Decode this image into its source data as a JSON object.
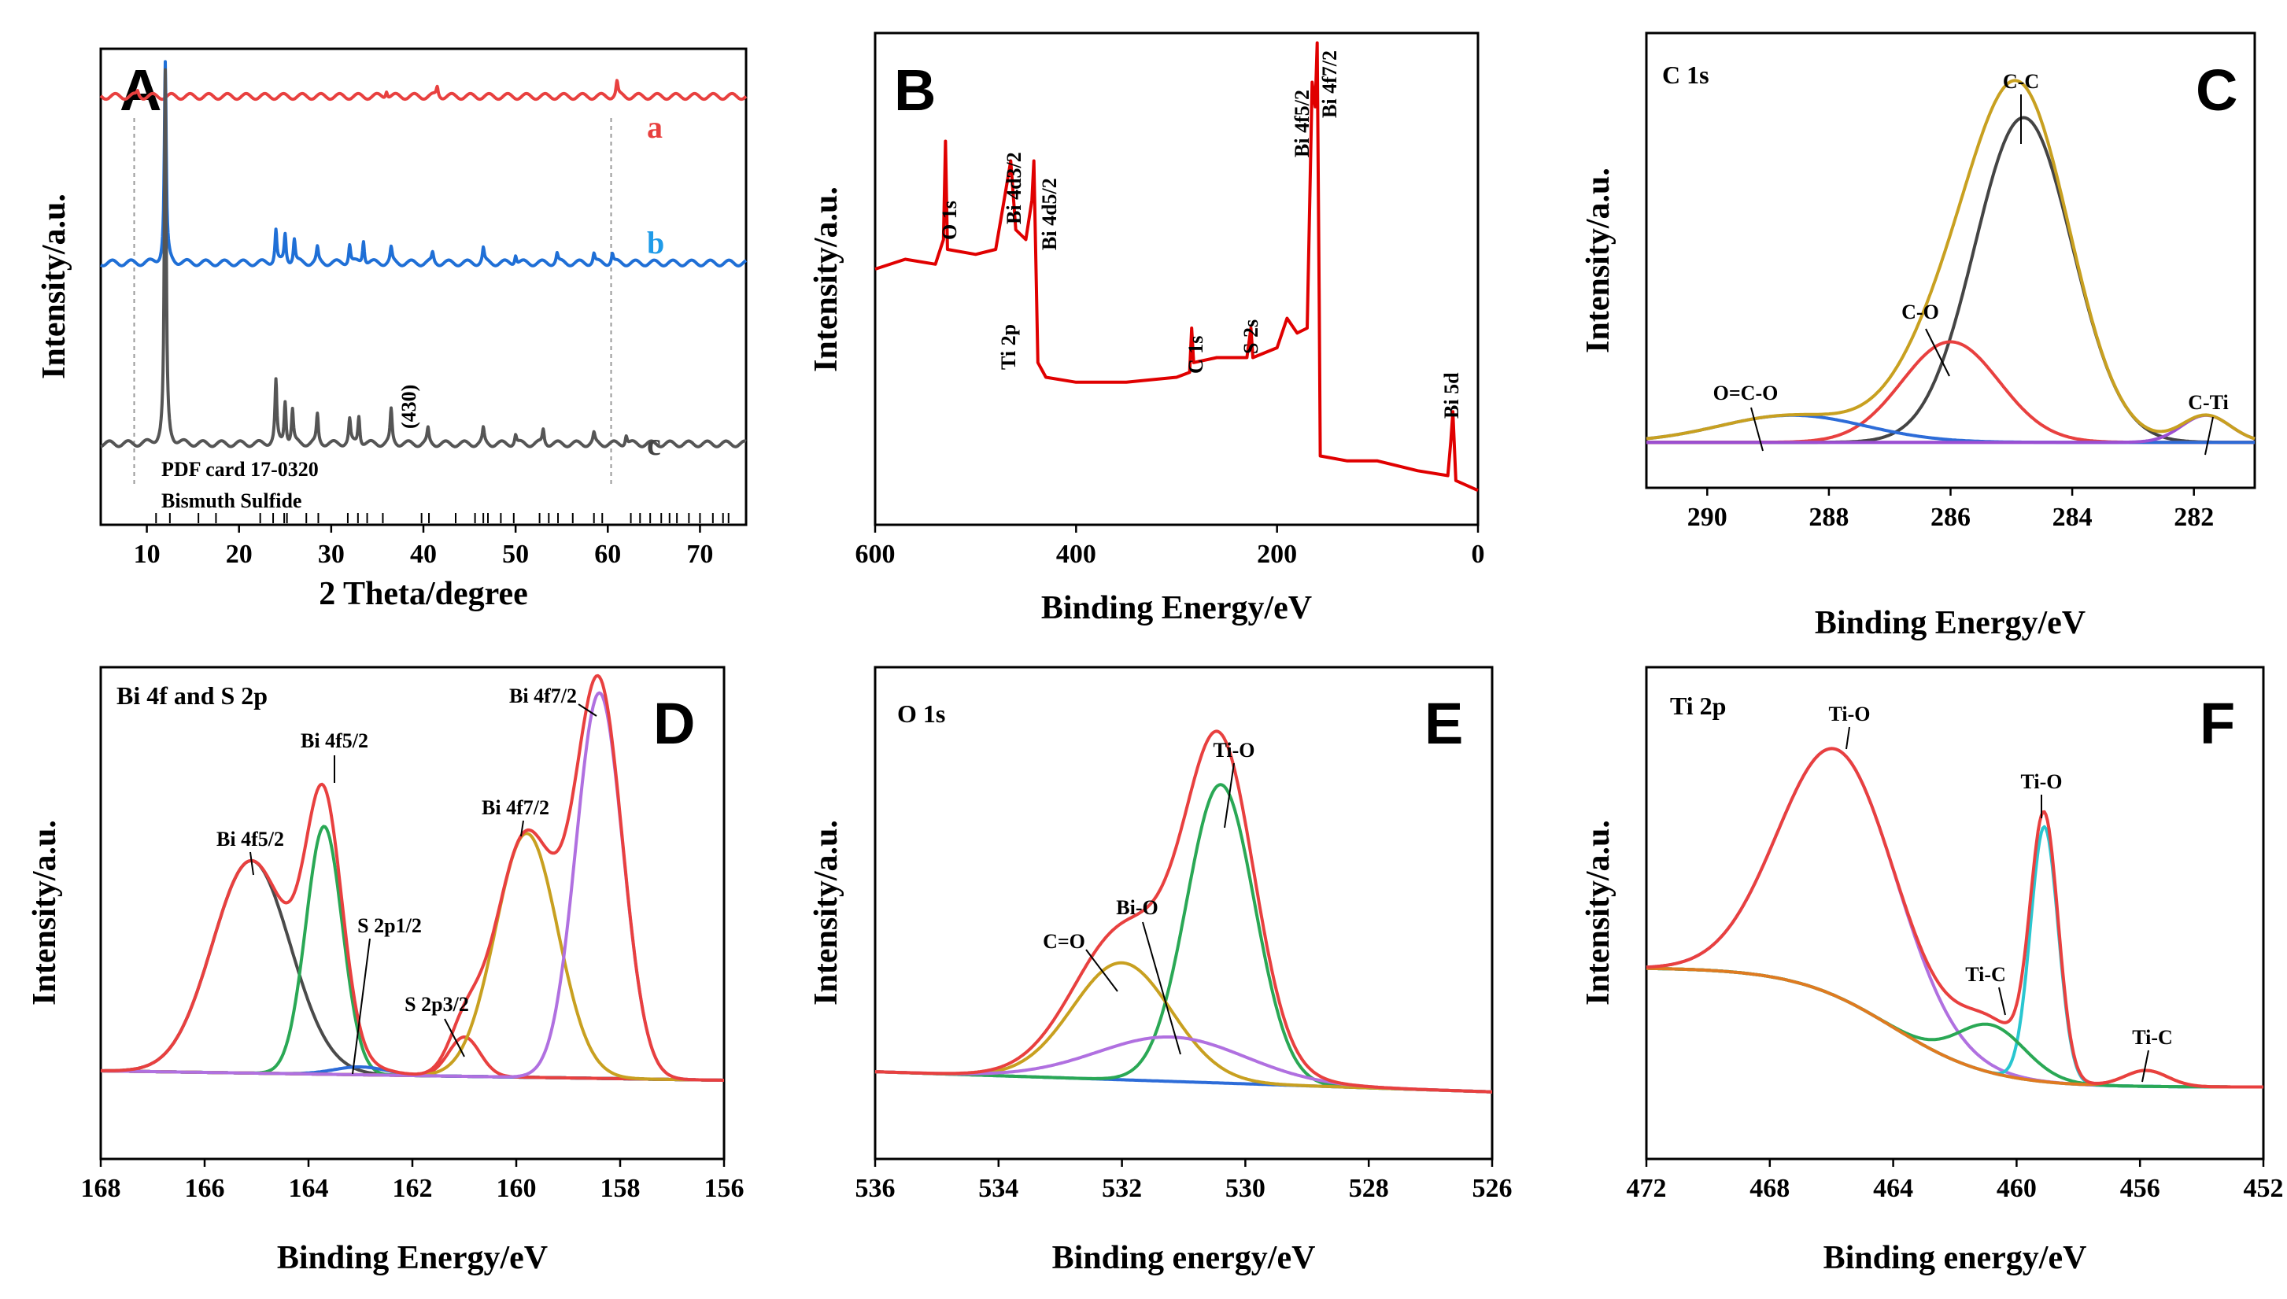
{
  "chart_data": [
    {
      "panel": "A",
      "type": "line",
      "xlabel": "2 Theta/degree",
      "ylabel": "Intensity/a.u.",
      "xlim": [
        5,
        75
      ],
      "xticks": [
        10,
        20,
        30,
        40,
        50,
        60,
        70
      ],
      "series": [
        {
          "name": "a",
          "color": "#e8403f",
          "offset": 0.9,
          "peaks": [
            [
              9,
              0.01
            ],
            [
              36,
              0.015
            ],
            [
              41.5,
              0.02
            ],
            [
              61,
              0.03
            ]
          ]
        },
        {
          "name": "b",
          "color": "#1f6fd6",
          "offset": 0.55,
          "peaks": [
            [
              12,
              0.42
            ],
            [
              24,
              0.07
            ],
            [
              25,
              0.06
            ],
            [
              26,
              0.05
            ],
            [
              28.5,
              0.03
            ],
            [
              32,
              0.04
            ],
            [
              33.5,
              0.05
            ],
            [
              36.5,
              0.03
            ],
            [
              41,
              0.02
            ],
            [
              46.5,
              0.03
            ],
            [
              50,
              0.02
            ],
            [
              54.5,
              0.02
            ],
            [
              58.5,
              0.02
            ],
            [
              60.5,
              0.02
            ]
          ]
        },
        {
          "name": "c",
          "color": "#555555",
          "offset": 0.17,
          "peaks": [
            [
              12,
              0.78
            ],
            [
              24,
              0.13
            ],
            [
              25,
              0.09
            ],
            [
              25.8,
              0.07
            ],
            [
              28.5,
              0.06
            ],
            [
              32,
              0.05
            ],
            [
              33,
              0.06
            ],
            [
              36.5,
              0.07
            ],
            [
              40.5,
              0.03
            ],
            [
              46.5,
              0.03
            ],
            [
              50,
              0.02
            ],
            [
              53,
              0.03
            ],
            [
              58.5,
              0.02
            ],
            [
              62,
              0.02
            ]
          ]
        }
      ],
      "reference_lines": [
        9,
        61
      ],
      "annotations": [
        "(430)",
        "PDF card 17-0320",
        "Bismuth Sulfide"
      ]
    },
    {
      "panel": "B",
      "type": "line",
      "xlabel": "Binding Energy/eV",
      "ylabel": "Intensity/a.u.",
      "xlim": [
        600,
        0
      ],
      "xticks": [
        600,
        400,
        200,
        0
      ],
      "series": [
        {
          "name": "survey",
          "color": "#e00000",
          "points": [
            [
              600,
              0.52
            ],
            [
              570,
              0.54
            ],
            [
              540,
              0.53
            ],
            [
              532,
              0.58
            ],
            [
              530,
              0.78
            ],
            [
              528,
              0.56
            ],
            [
              500,
              0.55
            ],
            [
              480,
              0.56
            ],
            [
              470,
              0.68
            ],
            [
              465,
              0.74
            ],
            [
              460,
              0.6
            ],
            [
              450,
              0.58
            ],
            [
              444,
              0.66
            ],
            [
              442,
              0.74
            ],
            [
              438,
              0.33
            ],
            [
              430,
              0.3
            ],
            [
              400,
              0.29
            ],
            [
              350,
              0.29
            ],
            [
              300,
              0.3
            ],
            [
              287,
              0.31
            ],
            [
              285,
              0.4
            ],
            [
              283,
              0.33
            ],
            [
              260,
              0.34
            ],
            [
              230,
              0.34
            ],
            [
              226,
              0.4
            ],
            [
              224,
              0.34
            ],
            [
              200,
              0.36
            ],
            [
              190,
              0.42
            ],
            [
              180,
              0.39
            ],
            [
              170,
              0.4
            ],
            [
              165,
              0.9
            ],
            [
              162,
              0.85
            ],
            [
              160,
              0.98
            ],
            [
              158,
              0.45
            ],
            [
              157,
              0.14
            ],
            [
              130,
              0.13
            ],
            [
              100,
              0.13
            ],
            [
              60,
              0.11
            ],
            [
              30,
              0.1
            ],
            [
              27,
              0.17
            ],
            [
              25,
              0.23
            ],
            [
              22,
              0.09
            ],
            [
              0,
              0.07
            ]
          ]
        }
      ],
      "peak_labels": [
        "O 1s",
        "Ti 2p",
        "Bi 4d3/2",
        "Bi 4d5/2",
        "C 1s",
        "S 2s",
        "Bi 4f5/2",
        "Bi 4f7/2",
        "Bi 5d"
      ]
    },
    {
      "panel": "C",
      "type": "line",
      "title": "C 1s",
      "xlabel": "Binding Energy/eV",
      "ylabel": "Intensity/a.u.",
      "xlim": [
        291,
        281
      ],
      "xticks": [
        290,
        288,
        286,
        284,
        282
      ],
      "components": [
        {
          "name": "C-C",
          "color": "#444444",
          "center": 284.8,
          "amp": 0.84,
          "width": 0.8
        },
        {
          "name": "C-O",
          "color": "#e8403f",
          "center": 286.0,
          "amp": 0.26,
          "width": 0.8
        },
        {
          "name": "O=C-O",
          "color": "#2d6cd8",
          "center": 288.6,
          "amp": 0.07,
          "width": 1.2
        },
        {
          "name": "C-Ti",
          "color": "#9b4fd2",
          "center": 281.8,
          "amp": 0.07,
          "width": 0.4
        }
      ],
      "envelope_color": "#c8a020",
      "baseline_color": "#a060e0"
    },
    {
      "panel": "D",
      "type": "line",
      "title": "Bi 4f and S 2p",
      "xlabel": "Binding Energy/eV",
      "ylabel": "Intensity/a.u.",
      "xlim": [
        168,
        156
      ],
      "xticks": [
        168,
        166,
        164,
        162,
        160,
        158,
        156
      ],
      "components": [
        {
          "name": "Bi 4f5/2",
          "color": "#4a4a4a",
          "center": 165.1,
          "amp": 0.54,
          "width": 0.75
        },
        {
          "name": "Bi 4f5/2",
          "color": "#2aa855",
          "center": 163.7,
          "amp": 0.63,
          "width": 0.35
        },
        {
          "name": "S 2p1/2",
          "color": "#2d6cd8",
          "center": 163.0,
          "amp": 0.02,
          "width": 0.5
        },
        {
          "name": "S 2p3/2",
          "color": "#e8403f",
          "center": 161.0,
          "amp": 0.1,
          "width": 0.3
        },
        {
          "name": "Bi 4f7/2",
          "color": "#c8a020",
          "center": 159.8,
          "amp": 0.62,
          "width": 0.6
        },
        {
          "name": "Bi 4f7/2",
          "color": "#b070e0",
          "center": 158.4,
          "amp": 0.98,
          "width": 0.45
        }
      ],
      "envelope_color": "#e8403f",
      "baseline_color": "#2d6cd8"
    },
    {
      "panel": "E",
      "type": "line",
      "title": "O 1s",
      "xlabel": "Binding energy/eV",
      "ylabel": "Intensity/a.u.",
      "xlim": [
        536,
        526
      ],
      "xticks": [
        536,
        534,
        532,
        530,
        528,
        526
      ],
      "components": [
        {
          "name": "Ti-O",
          "color": "#2aa855",
          "center": 530.4,
          "amp": 0.74,
          "width": 0.55
        },
        {
          "name": "C=O",
          "color": "#c8a020",
          "center": 532.0,
          "amp": 0.29,
          "width": 0.8
        },
        {
          "name": "Bi-O",
          "color": "#b070e0",
          "center": 531.2,
          "amp": 0.11,
          "width": 1.2
        }
      ],
      "envelope_color": "#e8403f",
      "baseline_color": "#2d6cd8"
    },
    {
      "panel": "F",
      "type": "line",
      "title": "Ti 2p",
      "xlabel": "Binding energy/eV",
      "ylabel": "Intensity/a.u.",
      "xlim": [
        472,
        452
      ],
      "xticks": [
        472,
        468,
        464,
        460,
        456,
        452
      ],
      "components": [
        {
          "name": "Ti-O",
          "color": "#b070e0",
          "center": 465.8,
          "amp": 0.62,
          "width": 1.9
        },
        {
          "name": "Ti-O",
          "color": "#29c6d0",
          "center": 459.1,
          "amp": 0.64,
          "width": 0.45
        },
        {
          "name": "Ti-C",
          "color": "#2aa855",
          "center": 460.8,
          "amp": 0.12,
          "width": 1.1
        },
        {
          "name": "Ti-C",
          "color": "#e07a20",
          "center": 455.8,
          "amp": 0.04,
          "width": 0.7
        }
      ],
      "envelope_color": "#e8403f",
      "baseline_color": "#29c6d0"
    }
  ]
}
